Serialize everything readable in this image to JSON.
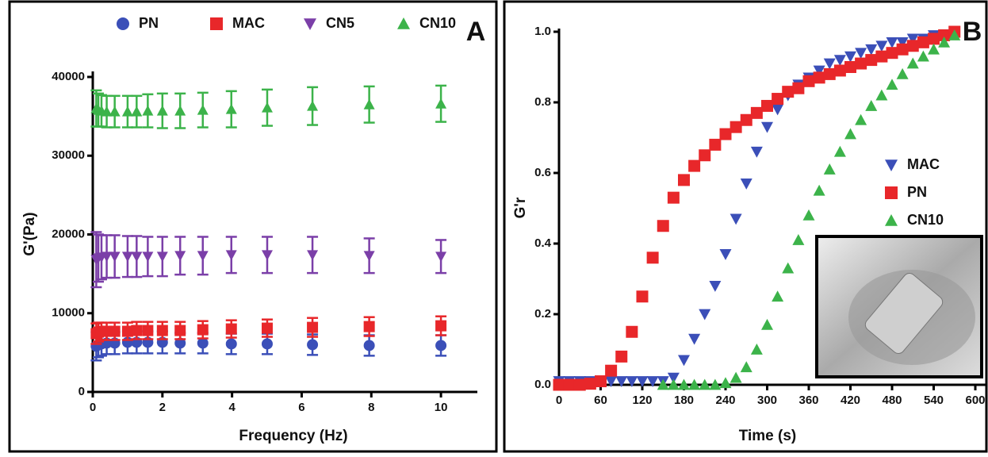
{
  "chart_data": [
    {
      "type": "scatter",
      "panel_label": "A",
      "xlabel": "Frequency (Hz)",
      "ylabel": "G'(Pa)",
      "x": [
        0.1,
        0.16,
        0.25,
        0.4,
        0.63,
        1,
        1.26,
        1.58,
        2,
        2.51,
        3.16,
        3.98,
        5.01,
        6.31,
        7.94,
        10
      ],
      "series": [
        {
          "name": "PN",
          "color": "#3b4fb8",
          "marker": "circle",
          "values": [
            5800,
            6000,
            6100,
            6200,
            6200,
            6300,
            6300,
            6300,
            6300,
            6200,
            6200,
            6100,
            6100,
            6000,
            5900,
            5900
          ],
          "errors": [
            1800,
            1600,
            1500,
            1400,
            1400,
            1400,
            1400,
            1400,
            1400,
            1300,
            1300,
            1300,
            1300,
            1300,
            1300,
            1300
          ]
        },
        {
          "name": "MAC",
          "color": "#e8272a",
          "marker": "square",
          "values": [
            7400,
            7600,
            7700,
            7700,
            7700,
            7700,
            7800,
            7800,
            7800,
            7800,
            7900,
            8000,
            8100,
            8200,
            8300,
            8400
          ],
          "errors": [
            1300,
            1200,
            1100,
            1100,
            1100,
            1100,
            1100,
            1100,
            1100,
            1100,
            1100,
            1100,
            1100,
            1200,
            1200,
            1200
          ]
        },
        {
          "name": "CN5",
          "color": "#7b3fa8",
          "marker": "triangle-down",
          "values": [
            16800,
            17000,
            17100,
            17200,
            17200,
            17200,
            17200,
            17200,
            17200,
            17300,
            17300,
            17400,
            17400,
            17400,
            17300,
            17200
          ],
          "errors": [
            3500,
            3000,
            2800,
            2700,
            2700,
            2600,
            2600,
            2500,
            2500,
            2400,
            2400,
            2300,
            2300,
            2300,
            2200,
            2100
          ]
        },
        {
          "name": "CN10",
          "color": "#3cb34a",
          "marker": "triangle-up",
          "values": [
            36000,
            35800,
            35700,
            35600,
            35600,
            35600,
            35600,
            35700,
            35700,
            35700,
            35800,
            35900,
            36100,
            36300,
            36500,
            36600
          ],
          "errors": [
            2300,
            2100,
            2000,
            2000,
            2000,
            2000,
            2000,
            2100,
            2200,
            2200,
            2200,
            2300,
            2300,
            2400,
            2300,
            2300
          ]
        }
      ],
      "xlim": [
        0,
        11
      ],
      "ylim": [
        0,
        40000
      ],
      "xticks": [
        0,
        2,
        4,
        6,
        8,
        10
      ],
      "yticks": [
        0,
        10000,
        20000,
        30000,
        40000
      ],
      "legend": "top"
    },
    {
      "type": "scatter",
      "panel_label": "B",
      "xlabel": "Time (s)",
      "ylabel": "G'r",
      "x": [
        0,
        15,
        30,
        45,
        60,
        75,
        90,
        105,
        120,
        135,
        150,
        165,
        180,
        195,
        210,
        225,
        240,
        255,
        270,
        285,
        300,
        315,
        330,
        345,
        360,
        375,
        390,
        405,
        420,
        435,
        450,
        465,
        480,
        495,
        510,
        525,
        540,
        555,
        570
      ],
      "series": [
        {
          "name": "MAC",
          "color": "#3b4fb8",
          "marker": "triangle-down",
          "values": [
            0.01,
            0.01,
            0.01,
            0.01,
            0.01,
            0.01,
            0.01,
            0.01,
            0.01,
            0.01,
            0.01,
            0.02,
            0.07,
            0.13,
            0.2,
            0.28,
            0.37,
            0.47,
            0.57,
            0.66,
            0.73,
            0.78,
            0.82,
            0.85,
            0.87,
            0.89,
            0.91,
            0.92,
            0.93,
            0.94,
            0.95,
            0.96,
            0.97,
            0.97,
            0.98,
            0.98,
            0.99,
            0.99,
            1.0
          ]
        },
        {
          "name": "PN",
          "color": "#e8272a",
          "marker": "square",
          "values": [
            0,
            0,
            0,
            0.003,
            0.01,
            0.04,
            0.08,
            0.15,
            0.25,
            0.36,
            0.45,
            0.53,
            0.58,
            0.62,
            0.65,
            0.68,
            0.71,
            0.73,
            0.75,
            0.77,
            0.79,
            0.81,
            0.83,
            0.84,
            0.86,
            0.87,
            0.88,
            0.89,
            0.9,
            0.91,
            0.92,
            0.93,
            0.94,
            0.95,
            0.96,
            0.97,
            0.98,
            0.99,
            1.0
          ]
        },
        {
          "name": "CN10",
          "color": "#3cb34a",
          "marker": "triangle-up",
          "values": [
            null,
            null,
            null,
            null,
            null,
            null,
            null,
            null,
            null,
            null,
            0,
            0,
            0,
            0,
            0,
            0,
            0.005,
            0.02,
            0.05,
            0.1,
            0.17,
            0.25,
            0.33,
            0.41,
            0.48,
            0.55,
            0.61,
            0.66,
            0.71,
            0.75,
            0.79,
            0.82,
            0.85,
            0.88,
            0.91,
            0.93,
            0.95,
            0.97,
            0.99
          ]
        }
      ],
      "xlim": [
        0,
        600
      ],
      "ylim": [
        0,
        1
      ],
      "xticks": [
        0,
        60,
        120,
        180,
        240,
        300,
        360,
        420,
        480,
        540,
        600
      ],
      "yticks": [
        {
          "value": 0,
          "label": "0.0"
        },
        0.2,
        0.4,
        0.6,
        0.8,
        {
          "value": 1,
          "label": "1.0"
        }
      ],
      "legend": "right"
    }
  ]
}
